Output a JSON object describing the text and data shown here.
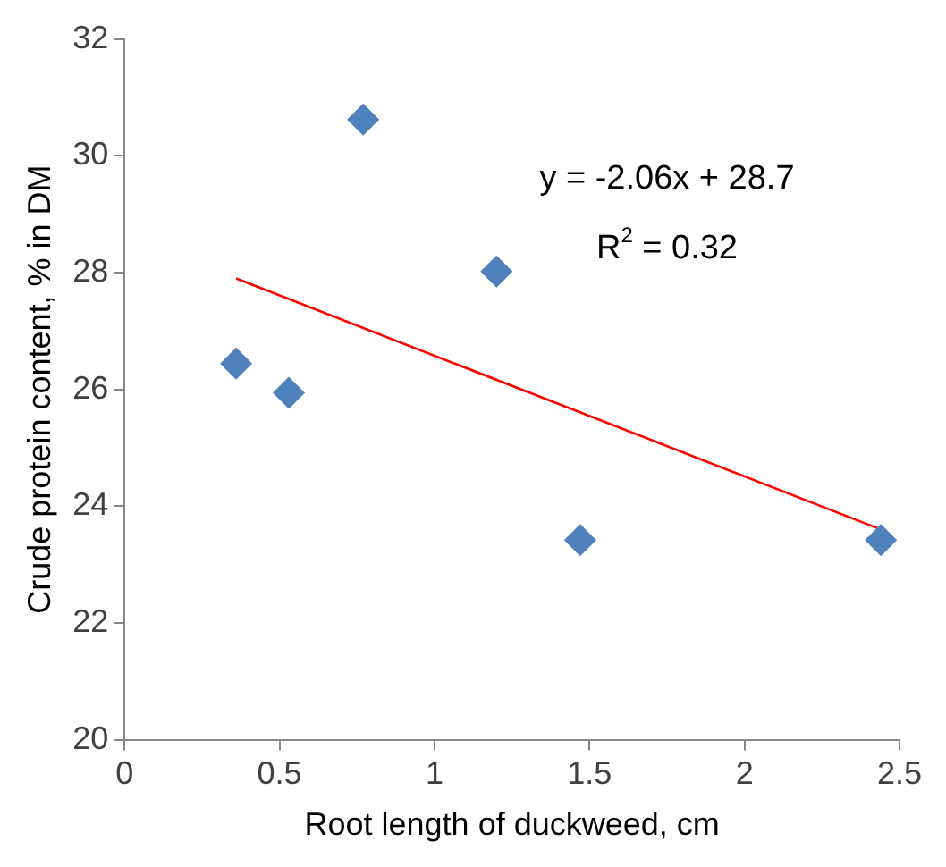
{
  "chart_data": {
    "type": "scatter",
    "xlabel": "Root length of duckweed, cm",
    "ylabel": "Crude protein content, % in DM",
    "series": [
      {
        "marker": "diamond",
        "color": "#4f81bd",
        "x": [
          0.36,
          0.53,
          0.77,
          1.2,
          1.47,
          2.44
        ],
        "values": [
          26.44,
          25.94,
          30.62,
          28.02,
          23.42,
          23.42
        ]
      },
      {
        "type": "line",
        "marker": "none",
        "color": "#ff0000",
        "x": [
          0.36,
          2.44
        ],
        "values": [
          27.9,
          23.6
        ]
      }
    ],
    "annotations": [
      "y = -2.06x + 28.7",
      "R$^{2}$ = 0.32"
    ],
    "legend": false,
    "grid": false,
    "xlim": [
      0,
      2.5
    ],
    "xticks": [
      {
        "value": 0,
        "label": "0"
      },
      0.5,
      1,
      1.5,
      2,
      2.5
    ],
    "ylim": [
      20,
      32
    ],
    "yticks": [
      20,
      22,
      24,
      26,
      28,
      30,
      32
    ]
  }
}
